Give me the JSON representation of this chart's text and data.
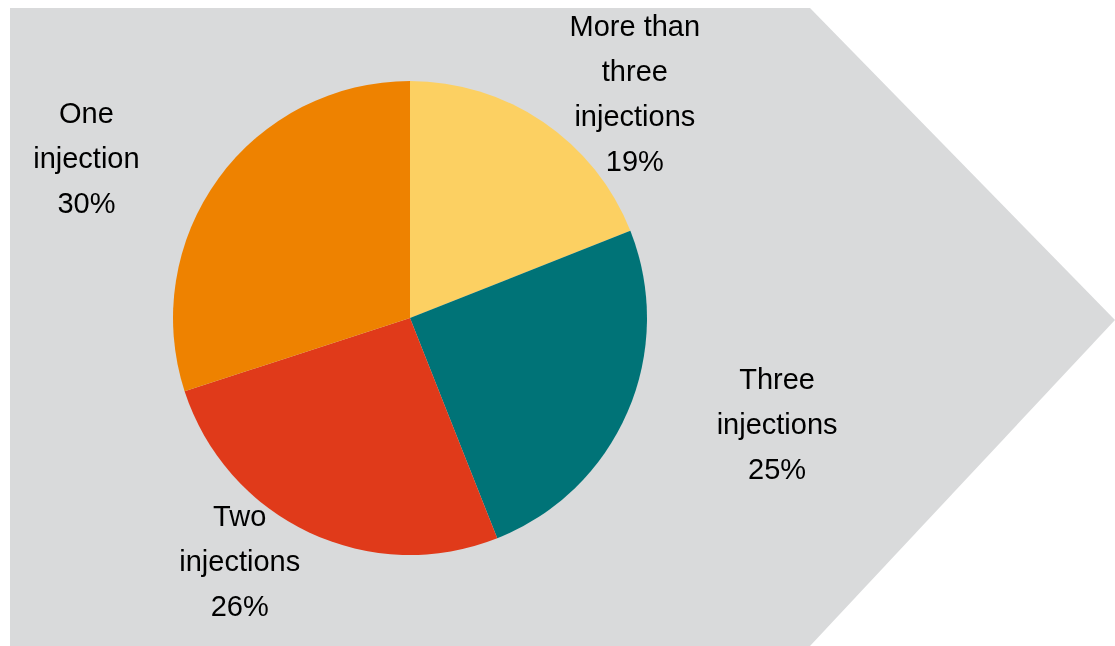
{
  "chart_data": {
    "type": "pie",
    "categories": [
      "More than three injections",
      "Three injections",
      "Two injections",
      "One injection"
    ],
    "values": [
      19,
      25,
      26,
      30
    ],
    "colors": [
      "#fcd062",
      "#007377",
      "#e03a1a",
      "#ee8200"
    ],
    "value_labels": [
      "19%",
      "25%",
      "26%",
      "30%"
    ]
  }
}
